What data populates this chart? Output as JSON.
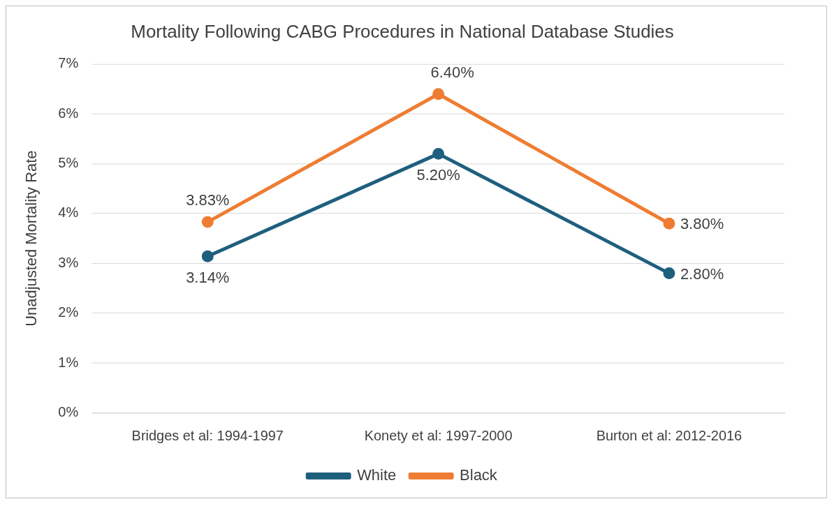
{
  "chart_data": {
    "type": "line",
    "title": "Mortality Following CABG Procedures in National Database Studies",
    "ylabel": "Unadjusted Mortality Rate",
    "categories": [
      "Bridges et al: 1994-1997",
      "Konety et al: 1997-2000",
      "Burton et al: 2012-2016"
    ],
    "series": [
      {
        "name": "White",
        "color": "#1f5f7e",
        "values": [
          3.14,
          5.2,
          2.8
        ],
        "value_labels": [
          "3.14%",
          "5.20%",
          "2.80%"
        ]
      },
      {
        "name": "Black",
        "color": "#ee7d33",
        "values": [
          3.83,
          6.4,
          3.8
        ],
        "value_labels": [
          "3.83%",
          "6.40%",
          "3.80%"
        ]
      }
    ],
    "ylim": [
      0,
      7
    ],
    "yticks": [
      {
        "value": 0,
        "label": "0%"
      },
      {
        "value": 1,
        "label": "1%"
      },
      {
        "value": 2,
        "label": "2%"
      },
      {
        "value": 3,
        "label": "3%"
      },
      {
        "value": 4,
        "label": "4%"
      },
      {
        "value": 5,
        "label": "5%"
      },
      {
        "value": 6,
        "label": "6%"
      },
      {
        "value": 7,
        "label": "7%"
      }
    ],
    "grid": "y",
    "legend": "bottom",
    "marker": "circle",
    "line_style": "solid"
  }
}
